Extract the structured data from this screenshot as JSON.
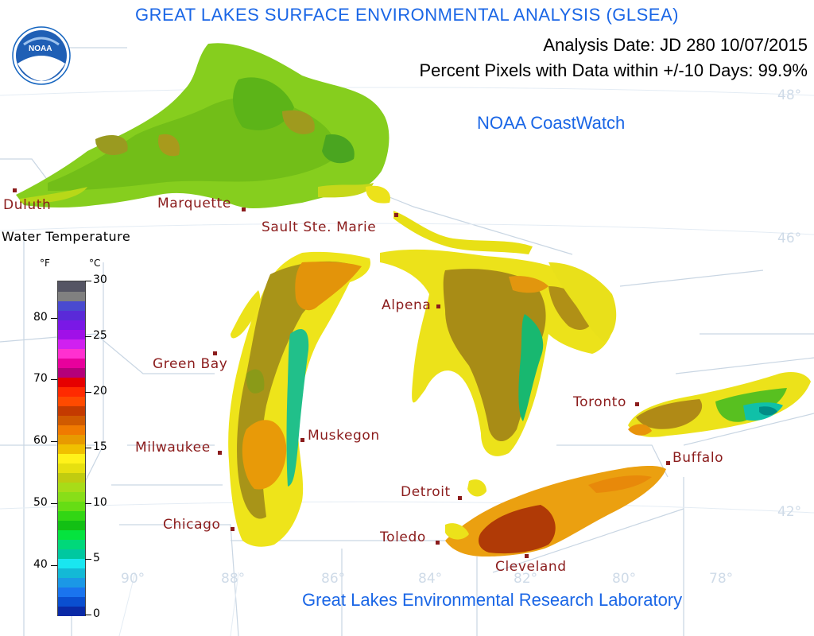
{
  "header": {
    "title": "GREAT LAKES SURFACE ENVIRONMENTAL ANALYSIS (GLSEA)",
    "analysis_date": "Analysis Date:  JD 280 10/07/2015",
    "percent_pixels": "Percent Pixels with Data within +/-10 Days:  99.9%",
    "coastwatch": "NOAA CoastWatch",
    "footer": "Great Lakes Environmental Research Laboratory"
  },
  "logo": {
    "text": "NOAA"
  },
  "legend": {
    "title": "Water Temperature",
    "unit_f": "°F",
    "unit_c": "°C",
    "f_ticks": [
      "80",
      "70",
      "60",
      "50",
      "40"
    ],
    "c_ticks": [
      "30",
      "25",
      "20",
      "15",
      "10",
      "5",
      "0"
    ],
    "colors": [
      "#0a2aa6",
      "#0a4fd0",
      "#1a74ee",
      "#1b98e6",
      "#13b9d6",
      "#19e6f0",
      "#00c8a0",
      "#00d87a",
      "#05e33e",
      "#12c014",
      "#32d614",
      "#66dd14",
      "#88de18",
      "#a8dc18",
      "#c0cc10",
      "#e6e010",
      "#fff21a",
      "#f0c000",
      "#e89a00",
      "#f07a00",
      "#d05a00",
      "#c43a00",
      "#ff4a00",
      "#ff2a00",
      "#e60000",
      "#b4007a",
      "#e8009c",
      "#ff30d0",
      "#d020f0",
      "#a010e8",
      "#7a18e6",
      "#5a2ad8",
      "#4a4ad0",
      "#808080",
      "#555564"
    ]
  },
  "cities": [
    {
      "name": "Duluth"
    },
    {
      "name": "Marquette"
    },
    {
      "name": "Sault Ste. Marie"
    },
    {
      "name": "Green Bay"
    },
    {
      "name": "Alpena"
    },
    {
      "name": "Milwaukee"
    },
    {
      "name": "Muskegon"
    },
    {
      "name": "Chicago"
    },
    {
      "name": "Detroit"
    },
    {
      "name": "Toledo"
    },
    {
      "name": "Cleveland"
    },
    {
      "name": "Toronto"
    },
    {
      "name": "Buffalo"
    }
  ],
  "graticule": {
    "lat_labels": [
      "48°",
      "46°",
      "42°"
    ],
    "lon_labels": [
      "90°",
      "88°",
      "86°",
      "84°",
      "82°",
      "80°",
      "78°"
    ]
  },
  "colors": {
    "title_blue": "#1a66e6",
    "city_red": "#8b1c1c",
    "border_gray": "#c9d6e3"
  }
}
